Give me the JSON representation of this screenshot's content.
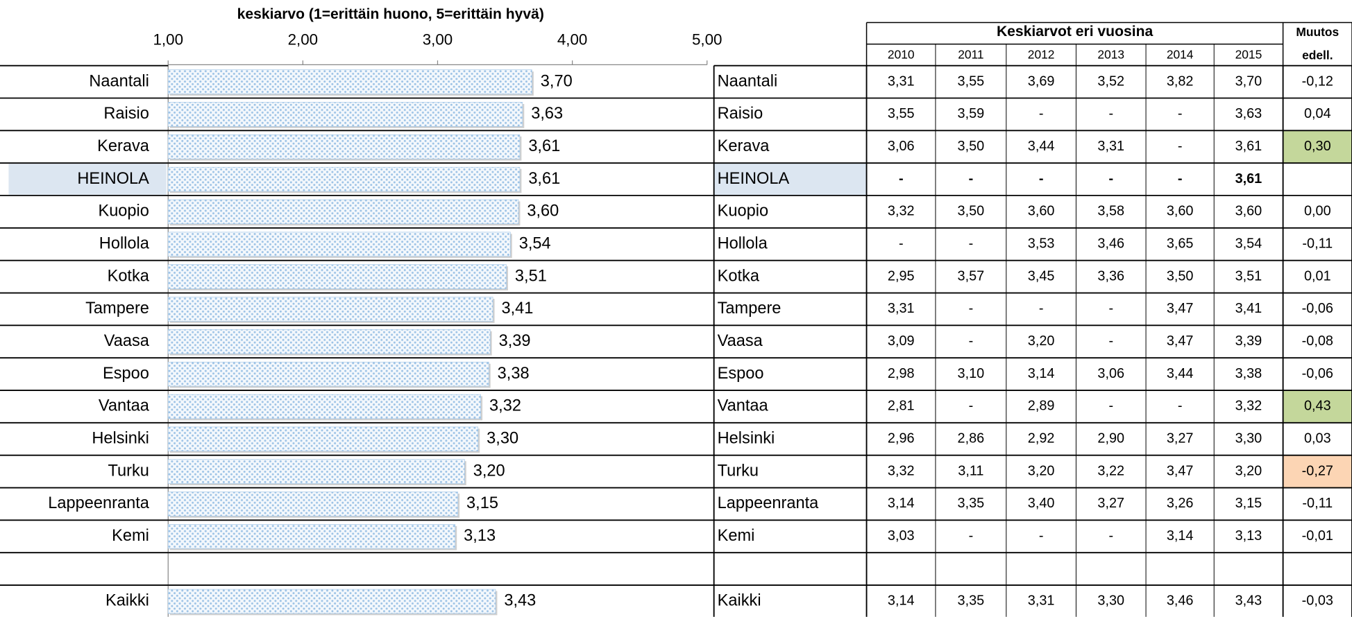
{
  "chart_data": {
    "type": "bar",
    "orientation": "horizontal",
    "title": "keskiarvo (1=erittäin huono, 5=erittäin hyvä)",
    "categories": [
      "Naantali",
      "Raisio",
      "Kerava",
      "HEINOLA",
      "Kuopio",
      "Hollola",
      "Kotka",
      "Tampere",
      "Vaasa",
      "Espoo",
      "Vantaa",
      "Helsinki",
      "Turku",
      "Lappeenranta",
      "Kemi",
      null,
      "Kaikki"
    ],
    "values": [
      3.7,
      3.63,
      3.61,
      3.61,
      3.6,
      3.54,
      3.51,
      3.41,
      3.39,
      3.38,
      3.32,
      3.3,
      3.2,
      3.15,
      3.13,
      null,
      3.43
    ],
    "value_labels": [
      "3,70",
      "3,63",
      "3,61",
      "3,61",
      "3,60",
      "3,54",
      "3,51",
      "3,41",
      "3,39",
      "3,38",
      "3,32",
      "3,30",
      "3,20",
      "3,15",
      "3,13",
      null,
      "3,43"
    ],
    "color": "#9dc3e6",
    "highlight_category": "HEINOLA",
    "highlight_color": "#dce6f1",
    "xlim": [
      1,
      5
    ],
    "xticks": [
      {
        "value": 1,
        "label": "1,00"
      },
      {
        "value": 2,
        "label": "2,00"
      },
      {
        "value": 3,
        "label": "3,00"
      },
      {
        "value": 4,
        "label": "4,00"
      },
      {
        "value": 5,
        "label": "5,00"
      }
    ]
  },
  "table": {
    "group_header": "Keskiarvot eri vuosina",
    "change_header": [
      "Muutos",
      "edell."
    ],
    "years": [
      "2010",
      "2011",
      "2012",
      "2013",
      "2014",
      "2015"
    ],
    "rows": [
      {
        "name": "Naantali",
        "cells": [
          "3,31",
          "3,55",
          "3,69",
          "3,52",
          "3,82",
          "3,70"
        ],
        "change": "-0,12"
      },
      {
        "name": "Raisio",
        "cells": [
          "3,55",
          "3,59",
          "-",
          "-",
          "-",
          "3,63"
        ],
        "change": "0,04"
      },
      {
        "name": "Kerava",
        "cells": [
          "3,06",
          "3,50",
          "3,44",
          "3,31",
          "-",
          "3,61"
        ],
        "change": "0,30",
        "change_fill": "#c4d79b"
      },
      {
        "name": "HEINOLA",
        "cells": [
          "-",
          "-",
          "-",
          "-",
          "-",
          "3,61"
        ],
        "change": null,
        "bold": true,
        "name_fill": "#dce6f1"
      },
      {
        "name": "Kuopio",
        "cells": [
          "3,32",
          "3,50",
          "3,60",
          "3,58",
          "3,60",
          "3,60"
        ],
        "change": "0,00"
      },
      {
        "name": "Hollola",
        "cells": [
          "-",
          "-",
          "3,53",
          "3,46",
          "3,65",
          "3,54"
        ],
        "change": "-0,11"
      },
      {
        "name": "Kotka",
        "cells": [
          "2,95",
          "3,57",
          "3,45",
          "3,36",
          "3,50",
          "3,51"
        ],
        "change": "0,01"
      },
      {
        "name": "Tampere",
        "cells": [
          "3,31",
          "-",
          "-",
          "-",
          "3,47",
          "3,41"
        ],
        "change": "-0,06"
      },
      {
        "name": "Vaasa",
        "cells": [
          "3,09",
          "-",
          "3,20",
          "-",
          "3,47",
          "3,39"
        ],
        "change": "-0,08"
      },
      {
        "name": "Espoo",
        "cells": [
          "2,98",
          "3,10",
          "3,14",
          "3,06",
          "3,44",
          "3,38"
        ],
        "change": "-0,06"
      },
      {
        "name": "Vantaa",
        "cells": [
          "2,81",
          "-",
          "2,89",
          "-",
          "-",
          "3,32"
        ],
        "change": "0,43",
        "change_fill": "#c4d79b"
      },
      {
        "name": "Helsinki",
        "cells": [
          "2,96",
          "2,86",
          "2,92",
          "2,90",
          "3,27",
          "3,30"
        ],
        "change": "0,03"
      },
      {
        "name": "Turku",
        "cells": [
          "3,32",
          "3,11",
          "3,20",
          "3,22",
          "3,47",
          "3,20"
        ],
        "change": "-0,27",
        "change_fill": "#fcd5b4"
      },
      {
        "name": "Lappeenranta",
        "cells": [
          "3,14",
          "3,35",
          "3,40",
          "3,27",
          "3,26",
          "3,15"
        ],
        "change": "-0,11"
      },
      {
        "name": "Kemi",
        "cells": [
          "3,03",
          "-",
          "-",
          "-",
          "3,14",
          "3,13"
        ],
        "change": "-0,01"
      },
      null,
      {
        "name": "Kaikki",
        "cells": [
          "3,14",
          "3,35",
          "3,31",
          "3,30",
          "3,46",
          "3,43"
        ],
        "change": "-0,03"
      }
    ]
  }
}
